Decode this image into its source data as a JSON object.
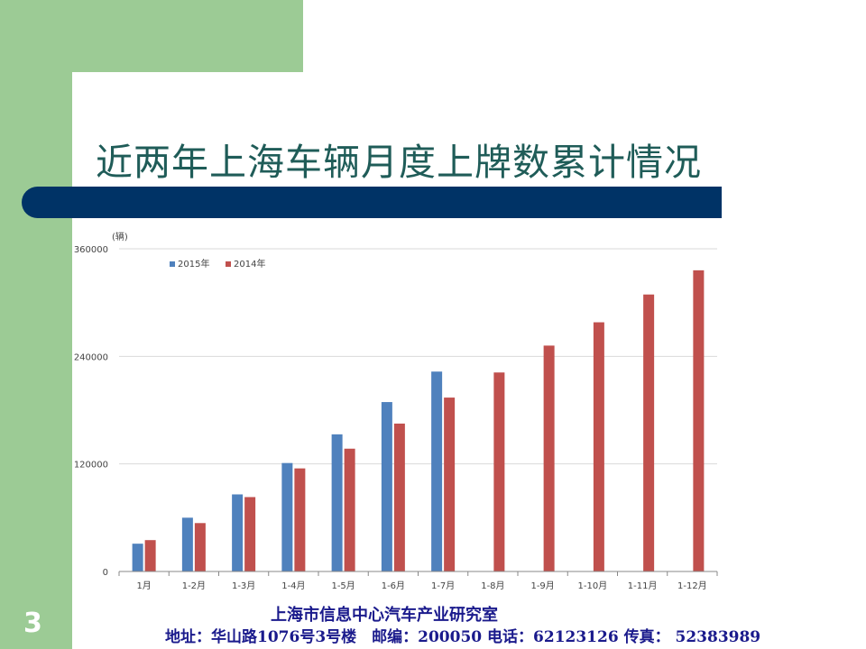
{
  "slide": {
    "title": "近两年上海车辆月度上牌数累计情况",
    "page_number": "3",
    "footer_org": "上海市信息中心汽车产业研究室",
    "footer_contact": "地址：华山路1076号3号楼　邮编：200050  电话：62123126  传真： 52383989"
  },
  "colors": {
    "green": "#9ccb95",
    "navy": "#003366",
    "series_2015": "#4f81bd",
    "series_2014": "#c0504d"
  },
  "chart_data": {
    "type": "bar",
    "unit_label": "(辆)",
    "categories": [
      "1月",
      "1-2月",
      "1-3月",
      "1-4月",
      "1-5月",
      "1-6月",
      "1-7月",
      "1-8月",
      "1-9月",
      "1-10月",
      "1-11月",
      "1-12月"
    ],
    "series": [
      {
        "name": "2015年",
        "color": "#4f81bd",
        "values": [
          31000,
          60000,
          86000,
          121000,
          153000,
          189000,
          223000,
          null,
          null,
          null,
          null,
          null
        ]
      },
      {
        "name": "2014年",
        "color": "#c0504d",
        "values": [
          35000,
          54000,
          83000,
          115000,
          137000,
          165000,
          194000,
          222000,
          252000,
          278000,
          309000,
          336000
        ]
      }
    ],
    "yticks": [
      0,
      120000,
      240000,
      360000
    ],
    "ytick_labels": [
      "0",
      "120000",
      "240000",
      "360000"
    ],
    "ylim": [
      0,
      360000
    ],
    "grid": true,
    "legend_position": "top-left"
  }
}
